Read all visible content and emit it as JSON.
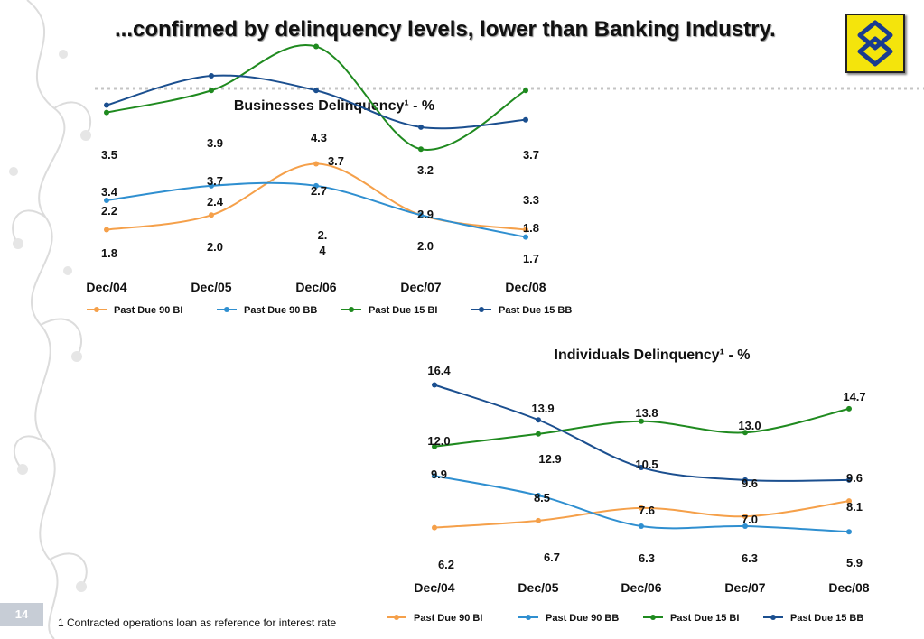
{
  "slide": {
    "title": "...confirmed by delinquency levels, lower than Banking Industry.",
    "footnote": "1 Contracted operations loan as reference for interest rate",
    "page_number": "14"
  },
  "colors": {
    "Past Due 90 BI": "#f5a04a",
    "Past Due 90 BB": "#2f8fd0",
    "Past Due 15 BI": "#1f8a1f",
    "Past Due 15 BB": "#1b4f8f"
  },
  "icons": [
    "banco-do-brasil-logo-icon",
    "floral-ornament-icon"
  ],
  "chart_data": [
    {
      "type": "line",
      "title": "Businesses Delinquency¹ - %",
      "categories": [
        "Dec/04",
        "Dec/05",
        "Dec/06",
        "Dec/07",
        "Dec/08"
      ],
      "series": [
        {
          "name": "Past Due 90 BI",
          "values": [
            1.8,
            2.0,
            2.7,
            2.0,
            1.8
          ]
        },
        {
          "name": "Past Due 90 BB",
          "values": [
            2.2,
            2.4,
            2.4,
            2.0,
            1.7
          ]
        },
        {
          "name": "Past Due 15 BI",
          "values": [
            3.4,
            3.7,
            4.3,
            2.9,
            3.7
          ]
        },
        {
          "name": "Past Due 15 BB",
          "values": [
            3.5,
            3.9,
            3.7,
            3.2,
            3.3
          ]
        }
      ],
      "data_labels": [
        "3.5",
        "3.4",
        "2.2",
        "1.8",
        "3.9",
        "3.7",
        "2.4",
        "2.0",
        "4.3",
        "3.7",
        "2.7",
        "2.\n4",
        "3.2",
        "2.9",
        "2.0",
        "3.7",
        "3.3",
        "1.8",
        "1.7"
      ],
      "legend": "bottom"
    },
    {
      "type": "line",
      "title": "Individuals Delinquency¹ - %",
      "categories": [
        "Dec/04",
        "Dec/05",
        "Dec/06",
        "Dec/07",
        "Dec/08"
      ],
      "series": [
        {
          "name": "Past Due 90 BI",
          "values": [
            6.2,
            6.7,
            7.6,
            7.0,
            8.1
          ]
        },
        {
          "name": "Past Due 90 BB",
          "values": [
            9.9,
            8.5,
            6.3,
            6.3,
            5.9
          ]
        },
        {
          "name": "Past Due 15 BI",
          "values": [
            12.0,
            12.9,
            13.8,
            13.0,
            14.7
          ]
        },
        {
          "name": "Past Due 15 BB",
          "values": [
            16.4,
            13.9,
            10.5,
            9.6,
            9.6
          ]
        }
      ],
      "data_labels": [
        "16.4",
        "12.0",
        "9.9",
        "6.2",
        "13.9",
        "12.9",
        "8.5",
        "6.7",
        "13.8",
        "10.5",
        "7.6",
        "6.3",
        "13.0",
        "9.6",
        "7.0",
        "6.3",
        "14.7",
        "9.6",
        "8.1",
        "5.9"
      ],
      "legend": "bottom"
    }
  ]
}
